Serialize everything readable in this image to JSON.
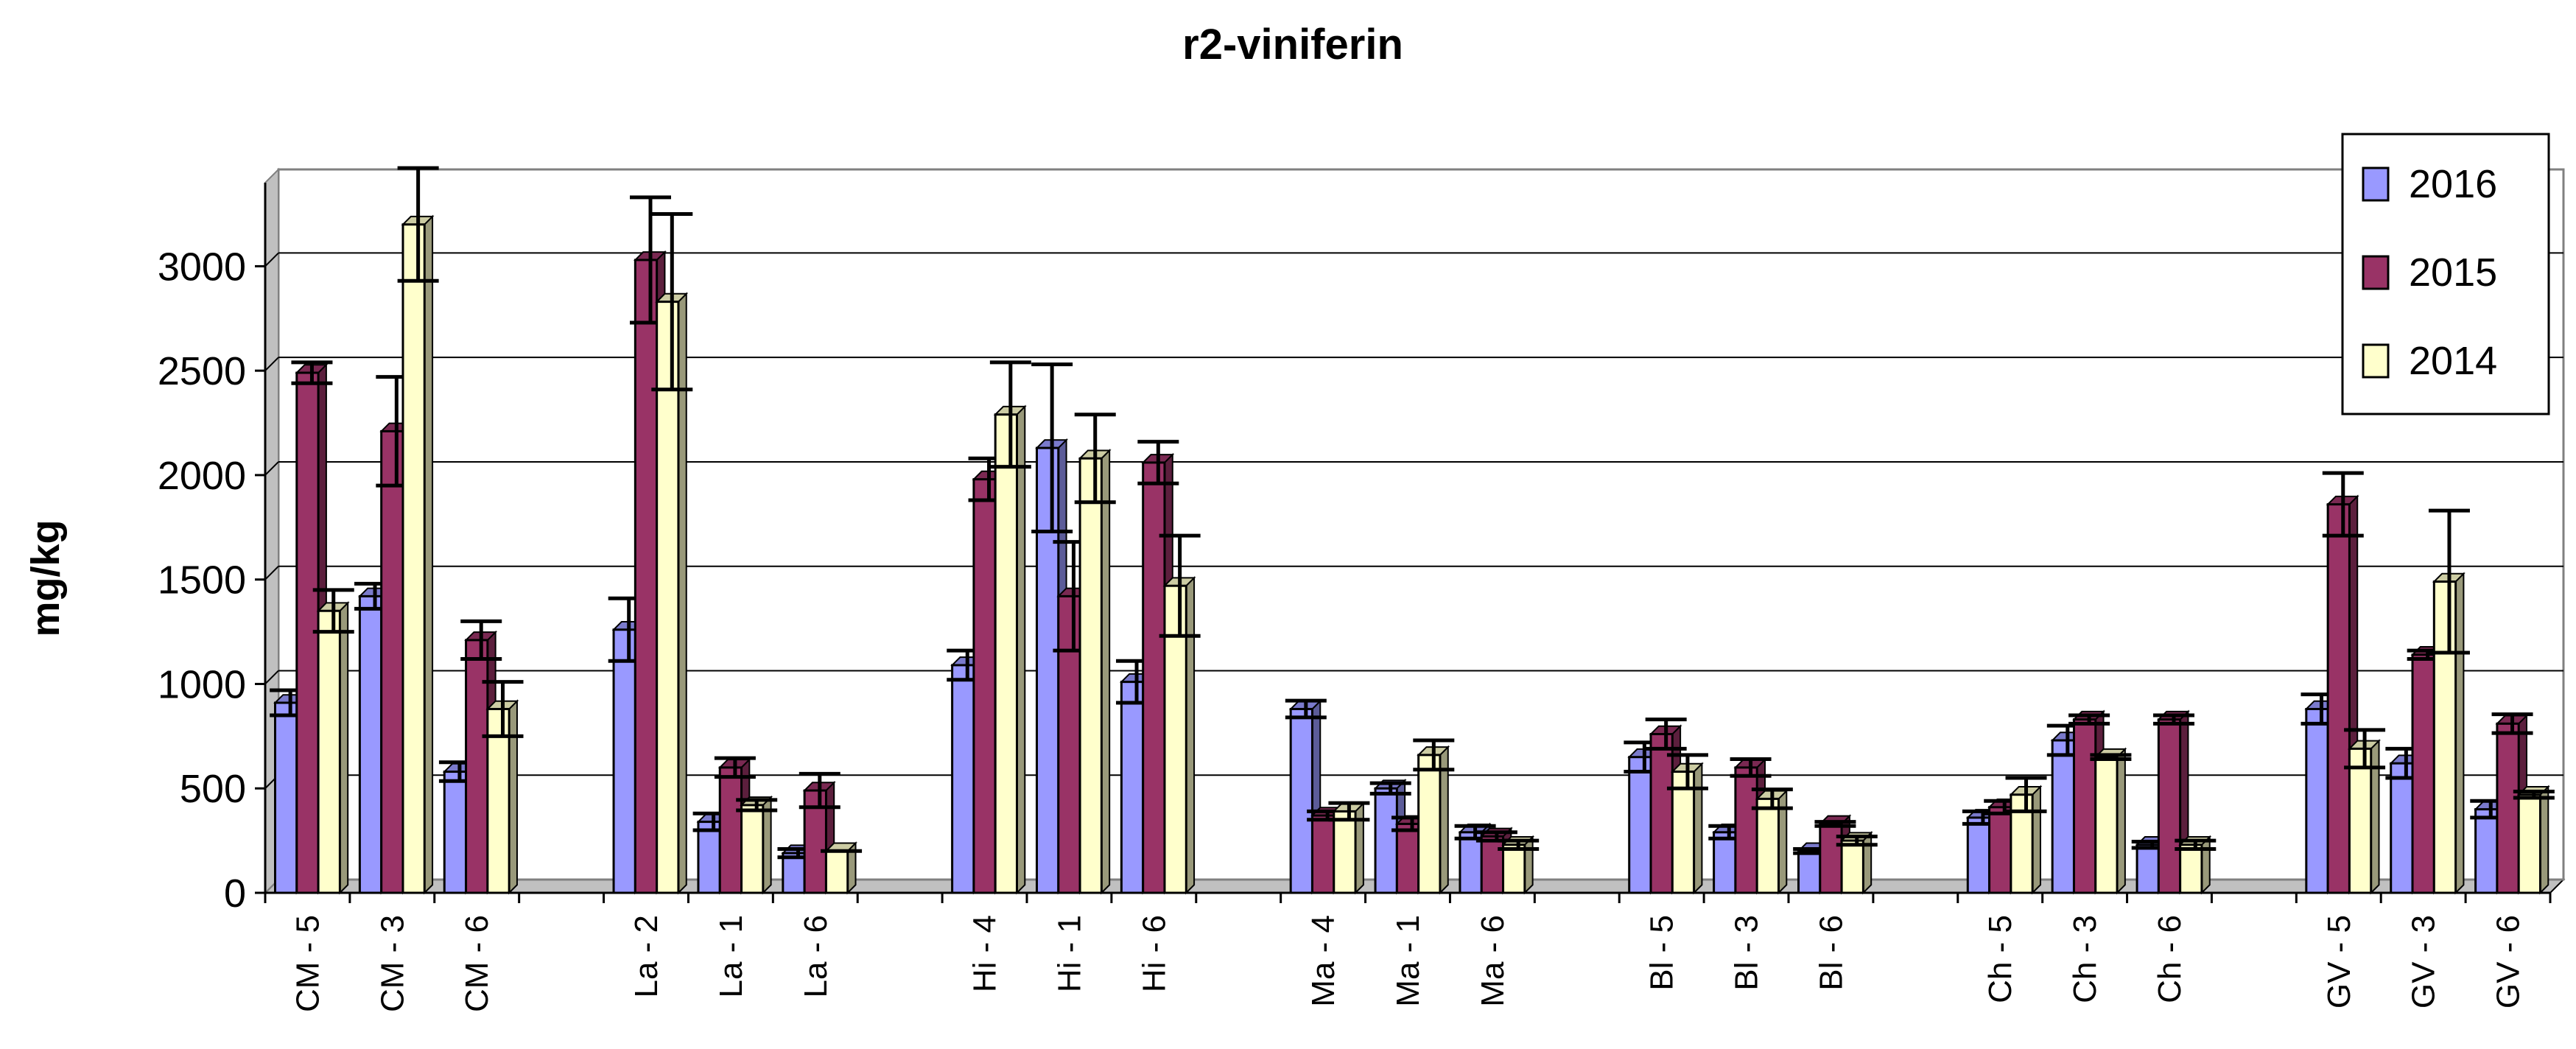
{
  "chart_data": {
    "type": "bar",
    "title": "r2-viniferin",
    "ylabel": "mg/kg",
    "xlabel": "",
    "ylim": [
      0,
      3400
    ],
    "yticks": [
      0,
      500,
      1000,
      1500,
      2000,
      2500,
      3000
    ],
    "grid": true,
    "legend_position": "top-right",
    "categories": [
      "CM - 5",
      "CM - 3",
      "CM - 6",
      "",
      "La - 2",
      "La - 1",
      "La - 6",
      "",
      "Hi - 4",
      "Hi - 1",
      "Hi - 6",
      "",
      "Ma - 4",
      "Ma - 1",
      "Ma - 6",
      "",
      "Bl - 5",
      "Bl - 3",
      "Bl - 6",
      "",
      "Ch - 5",
      "Ch - 3",
      "Ch - 6",
      "",
      "GV - 5",
      "GV - 3",
      "GV - 6"
    ],
    "series": [
      {
        "name": "2016",
        "color": "#9999ff",
        "values": [
          910,
          1420,
          580,
          null,
          1260,
          340,
          190,
          null,
          1090,
          2130,
          1010,
          null,
          880,
          500,
          290,
          null,
          650,
          290,
          200,
          null,
          360,
          730,
          230,
          null,
          880,
          620,
          400
        ],
        "errors": [
          60,
          60,
          45,
          null,
          150,
          40,
          20,
          null,
          70,
          400,
          100,
          null,
          40,
          25,
          30,
          null,
          70,
          30,
          10,
          null,
          30,
          70,
          15,
          null,
          70,
          70,
          40
        ]
      },
      {
        "name": "2015",
        "color": "#993366",
        "values": [
          2490,
          2210,
          1210,
          null,
          3030,
          600,
          490,
          null,
          1980,
          1420,
          2060,
          null,
          370,
          330,
          270,
          null,
          760,
          600,
          330,
          null,
          410,
          830,
          830,
          null,
          1860,
          1140,
          810
        ],
        "errors": [
          50,
          260,
          90,
          null,
          300,
          45,
          80,
          null,
          100,
          260,
          100,
          null,
          20,
          30,
          20,
          null,
          70,
          40,
          10,
          null,
          30,
          20,
          20,
          null,
          150,
          20,
          45
        ]
      },
      {
        "name": "2014",
        "color": "#ffffcc",
        "values": [
          1350,
          3200,
          880,
          null,
          2830,
          420,
          200,
          null,
          2290,
          2080,
          1470,
          null,
          390,
          660,
          230,
          null,
          580,
          450,
          250,
          null,
          470,
          650,
          230,
          null,
          690,
          1490,
          470
        ],
        "errors": [
          100,
          270,
          130,
          null,
          420,
          25,
          0,
          null,
          250,
          210,
          240,
          null,
          40,
          70,
          20,
          null,
          80,
          45,
          20,
          null,
          80,
          10,
          20,
          null,
          90,
          340,
          15
        ]
      }
    ]
  }
}
